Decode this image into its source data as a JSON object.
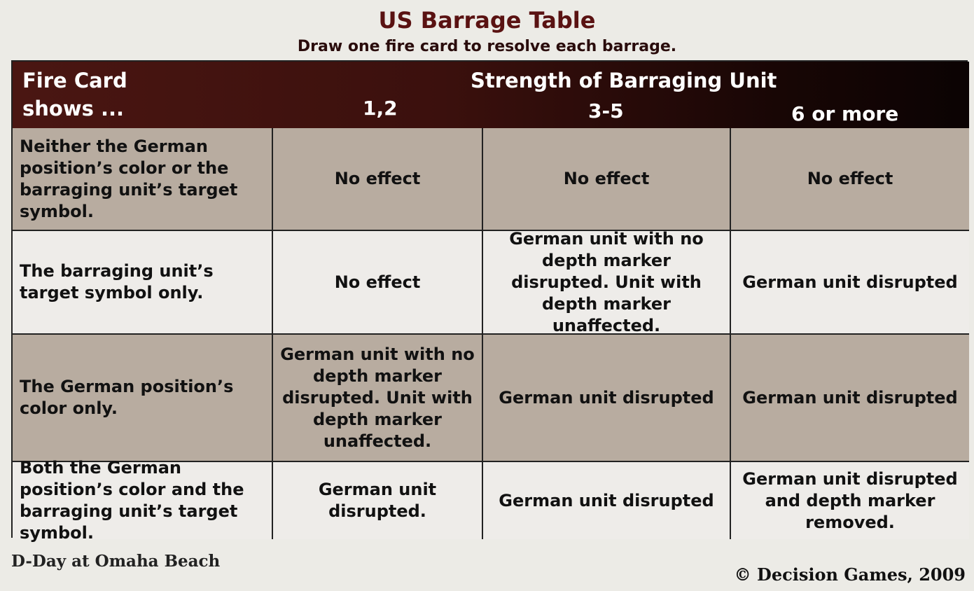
{
  "title": "US Barrage Table",
  "subtitle": "Draw one fire card to resolve each barrage.",
  "header": {
    "fire_card_line1": "Fire Card",
    "fire_card_line2": "shows ...",
    "strength_label": "Strength of Barraging Unit",
    "columns": [
      "1,2",
      "3-5",
      "6 or more"
    ]
  },
  "rows": [
    {
      "label": "Neither the German position’s color or the barraging unit’s target symbol.",
      "cells": [
        "No effect",
        "No effect",
        "No effect"
      ]
    },
    {
      "label": "The barraging unit’s target symbol only.",
      "cells": [
        "No effect",
        "German unit with no depth marker disrupted. Unit with depth marker unaffected.",
        "German unit disrupted"
      ]
    },
    {
      "label": "The German position’s color only.",
      "cells": [
        "German unit with no depth marker disrupted. Unit with depth marker unaffected.",
        "German unit disrupted",
        "German unit disrupted"
      ]
    },
    {
      "label": "Both the German position’s color and the barraging unit’s target symbol.",
      "cells": [
        "German unit disrupted.",
        "German unit disrupted",
        "German unit disrupted and depth marker removed."
      ]
    }
  ],
  "footer": {
    "game": "D-Day at Omaha Beach",
    "copyright": "© Decision  Games, 2009"
  }
}
